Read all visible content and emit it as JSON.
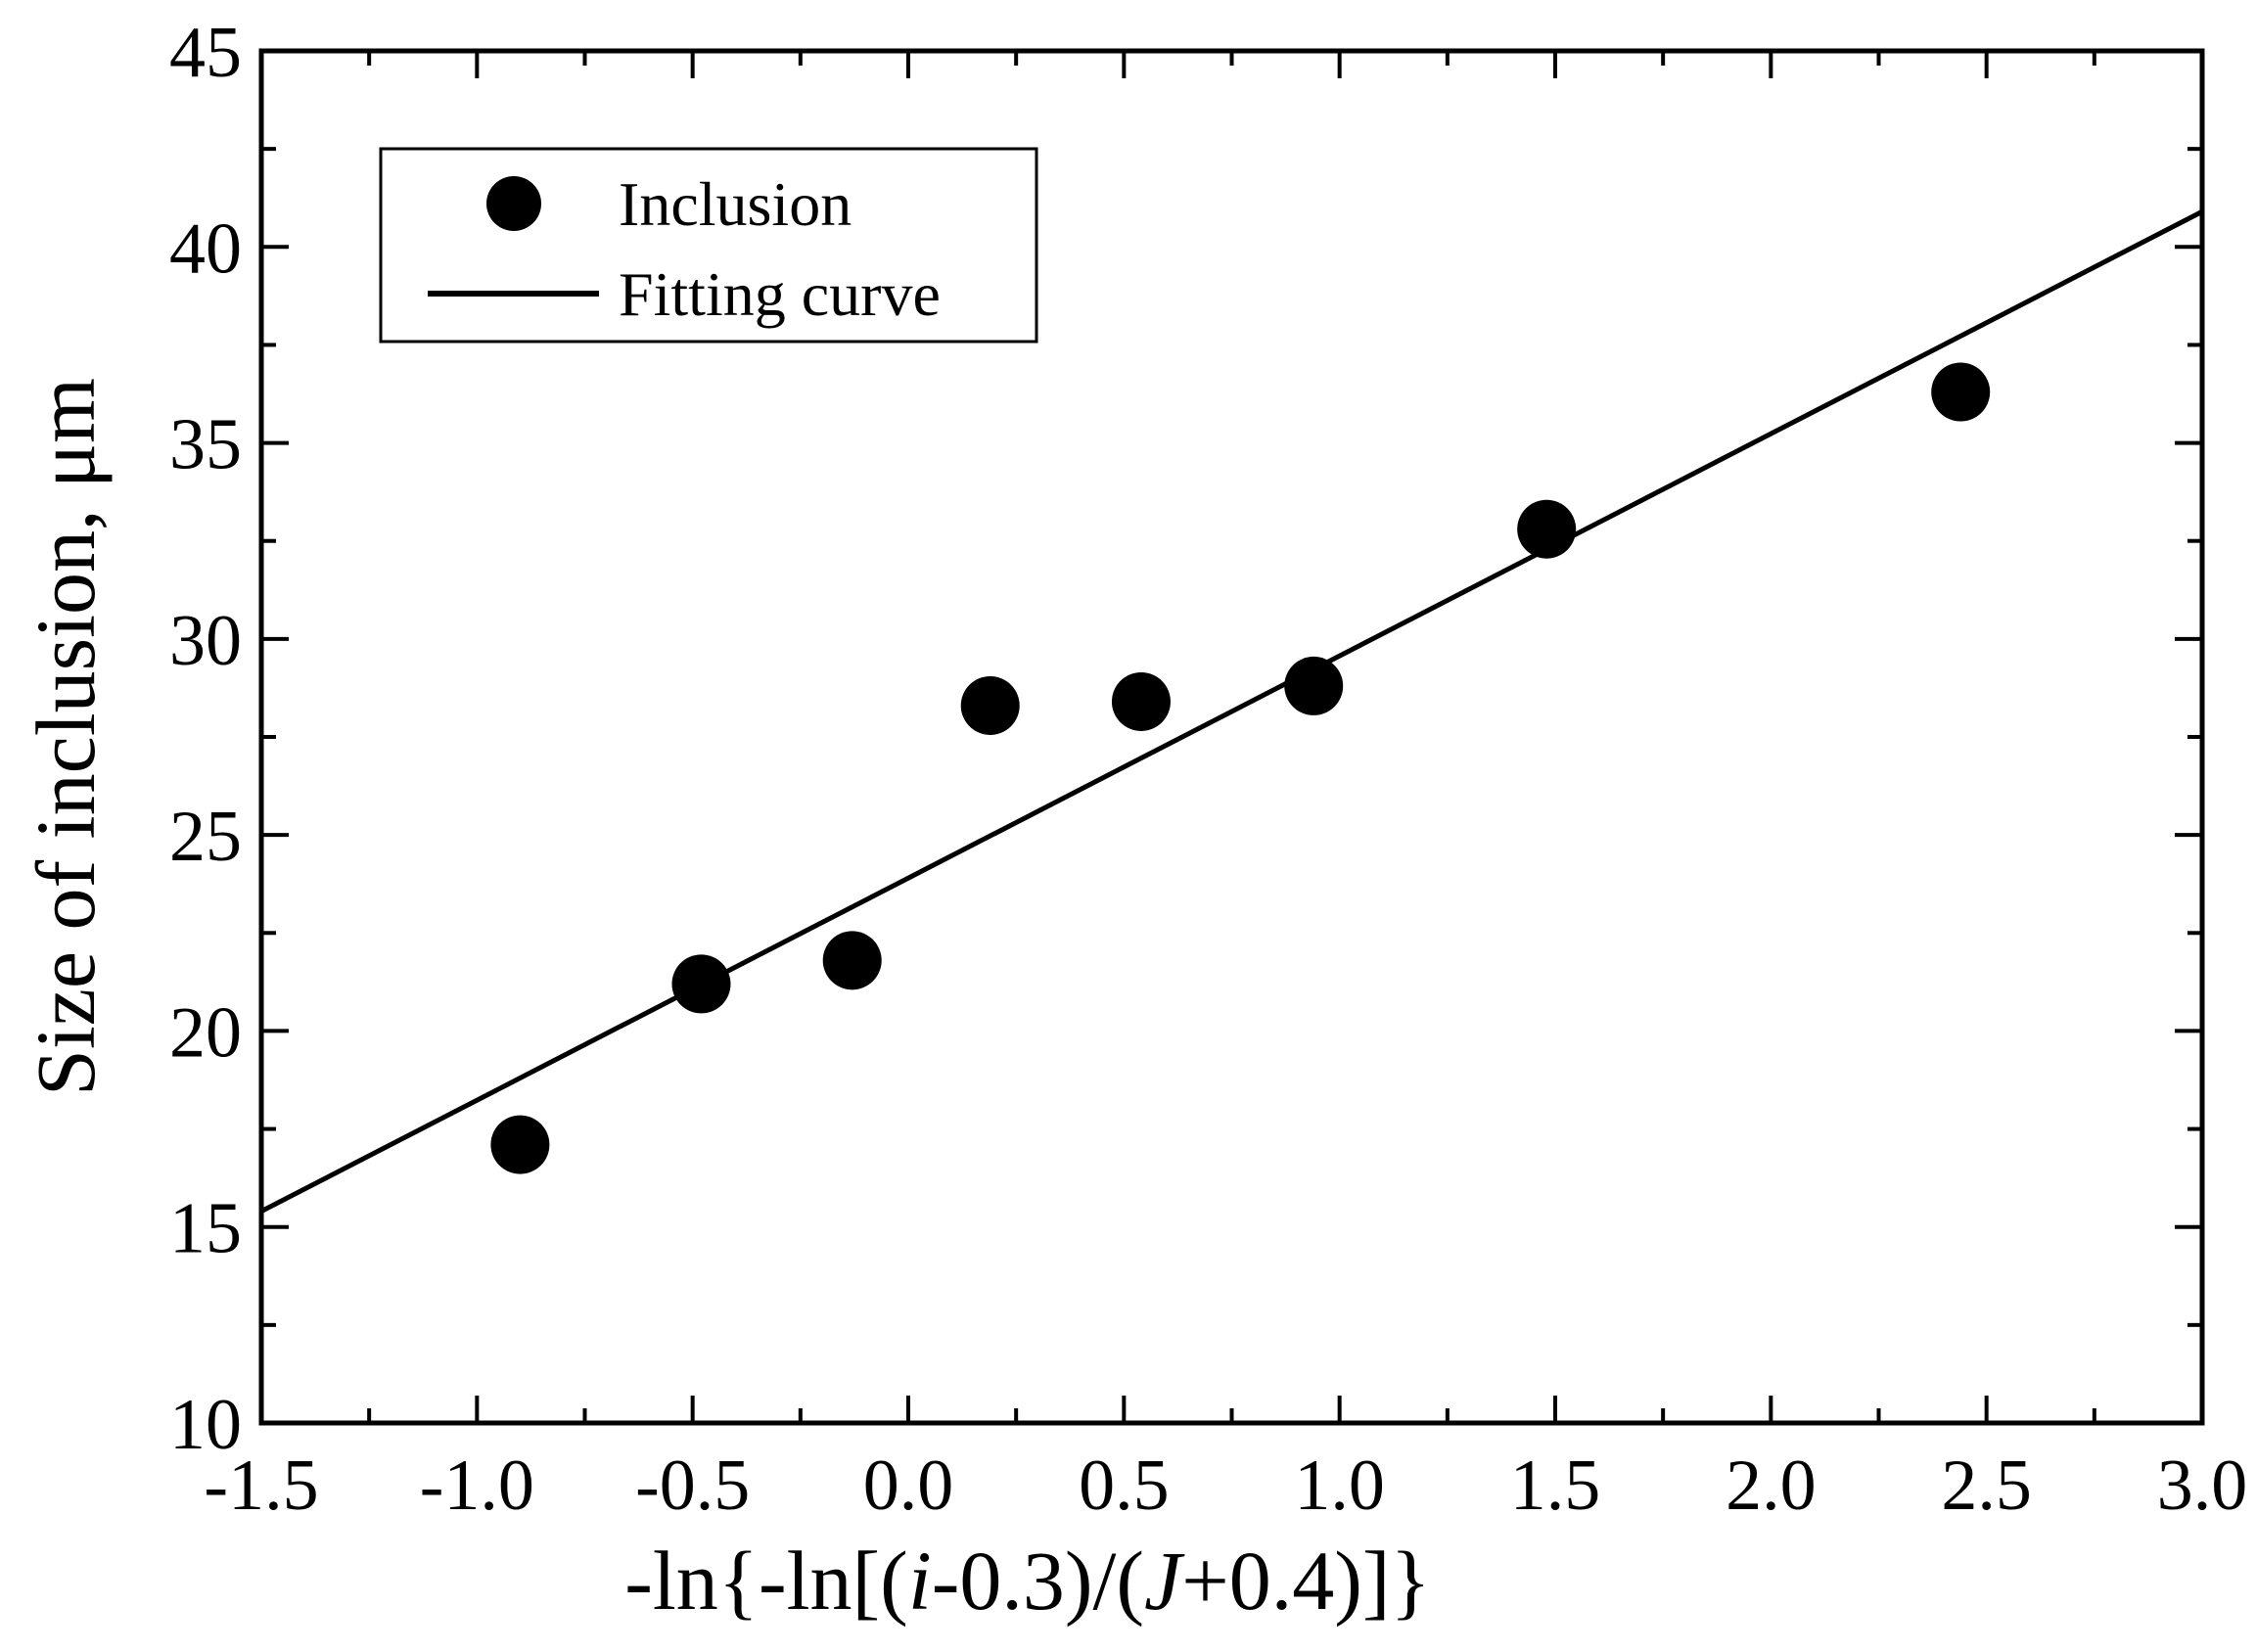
{
  "chart_data": {
    "type": "scatter",
    "title": "",
    "xlabel": "-ln{-ln[(i-0.3)/(J+0.4)]}",
    "xlabel_parts": {
      "p1": "-ln{-ln[(",
      "p2": "i",
      "p3": "-0.3)/(",
      "p4": "J",
      "p5": "+0.4)]}"
    },
    "ylabel": "Size of inclusion, μm",
    "xlim": [
      -1.5,
      3.0
    ],
    "ylim": [
      10,
      45
    ],
    "x_major_ticks": [
      -1.5,
      -1.0,
      -0.5,
      0.0,
      0.5,
      1.0,
      1.5,
      2.0,
      2.5,
      3.0
    ],
    "x_tick_labels": [
      "-1.5",
      "-1.0",
      "-0.5",
      "0.0",
      "0.5",
      "1.0",
      "1.5",
      "2.0",
      "2.5",
      "3.0"
    ],
    "y_major_ticks": [
      10,
      15,
      20,
      25,
      30,
      35,
      40,
      45
    ],
    "y_tick_labels": [
      "10",
      "15",
      "20",
      "25",
      "30",
      "35",
      "40",
      "45"
    ],
    "grid": false,
    "legend_position": "top-left",
    "series": [
      {
        "name": "Inclusion",
        "kind": "points",
        "x": [
          -0.9,
          -0.48,
          -0.13,
          0.19,
          0.54,
          0.94,
          1.48,
          2.44
        ],
        "y": [
          17.1,
          21.2,
          21.8,
          28.3,
          28.4,
          28.8,
          32.8,
          36.3
        ],
        "color": "#000000"
      },
      {
        "name": "Fitting curve",
        "kind": "line",
        "x": [
          -1.5,
          3.0
        ],
        "y": [
          15.4,
          40.9
        ],
        "color": "#000000"
      }
    ]
  }
}
